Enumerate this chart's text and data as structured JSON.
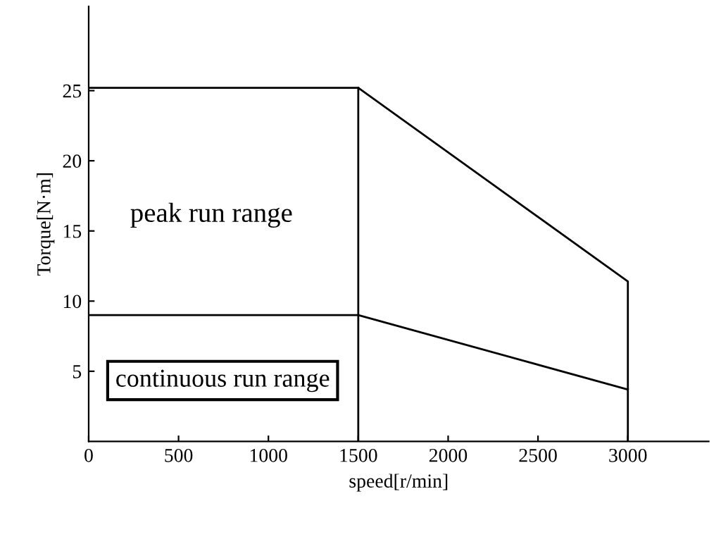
{
  "chart_data": {
    "type": "line",
    "xlabel": "speed[r/min]",
    "ylabel": "Torque[N·m]",
    "xlim": [
      0,
      3450
    ],
    "ylim": [
      0,
      31
    ],
    "xticks": [
      {
        "value": 0,
        "label": "0"
      },
      500,
      1000,
      1500,
      2000,
      2500,
      3000
    ],
    "yticks": [
      5,
      10,
      15,
      20,
      25
    ],
    "series": [
      {
        "color": "#000000",
        "x": [
          0,
          1500
        ],
        "values": [
          25.2,
          25.2
        ]
      },
      {
        "color": "#000000",
        "x": [
          0,
          1500,
          3000
        ],
        "values": [
          9.0,
          9.0,
          3.7
        ]
      },
      {
        "color": "#000000",
        "x": [
          1500,
          1500,
          3000,
          3000
        ],
        "values": [
          0,
          25.2,
          11.4,
          0
        ]
      }
    ],
    "annotations": [
      "peak run range",
      "continuous run range"
    ],
    "grid": false,
    "legend": false,
    "marker": "none",
    "line_style": "solid"
  }
}
